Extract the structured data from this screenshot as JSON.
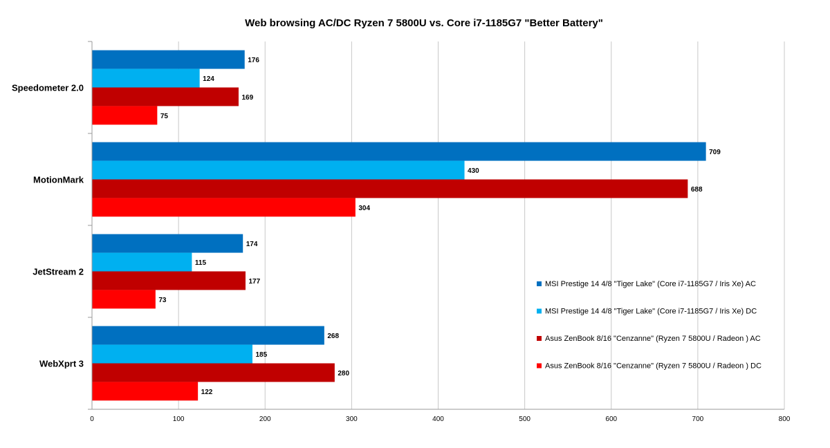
{
  "chart_data": {
    "type": "bar",
    "orientation": "horizontal",
    "title": "Web browsing AC/DC Ryzen 7 5800U vs. Core i7-1185G7 \"Better Battery\"",
    "categories": [
      "Speedometer 2.0",
      "MotionMark",
      "JetStream 2",
      "WebXprt 3"
    ],
    "series": [
      {
        "name": "MSI Prestige 14 4/8  \"Tiger Lake\" (Core i7-1185G7 / Iris Xe) AC",
        "color": "#0070C0",
        "values": [
          176,
          709,
          174,
          268
        ]
      },
      {
        "name": "MSI Prestige 14 4/8  \"Tiger Lake\" (Core i7-1185G7 / Iris Xe) DC",
        "color": "#00B0F0",
        "values": [
          124,
          430,
          115,
          185
        ]
      },
      {
        "name": "Asus ZenBook 8/16  \"Cenzanne\" (Ryzen 7 5800U / Radeon ) AC",
        "color": "#C00000",
        "values": [
          169,
          688,
          177,
          280
        ]
      },
      {
        "name": "Asus ZenBook 8/16  \"Cenzanne\" (Ryzen 7 5800U / Radeon ) DC",
        "color": "#FF0000",
        "values": [
          75,
          304,
          73,
          122
        ]
      }
    ],
    "xlim": [
      0,
      800
    ],
    "xticks": [
      0,
      100,
      200,
      300,
      400,
      500,
      600,
      700,
      800
    ],
    "xlabel": "",
    "ylabel": "",
    "grid": true,
    "legend_position": "right"
  }
}
